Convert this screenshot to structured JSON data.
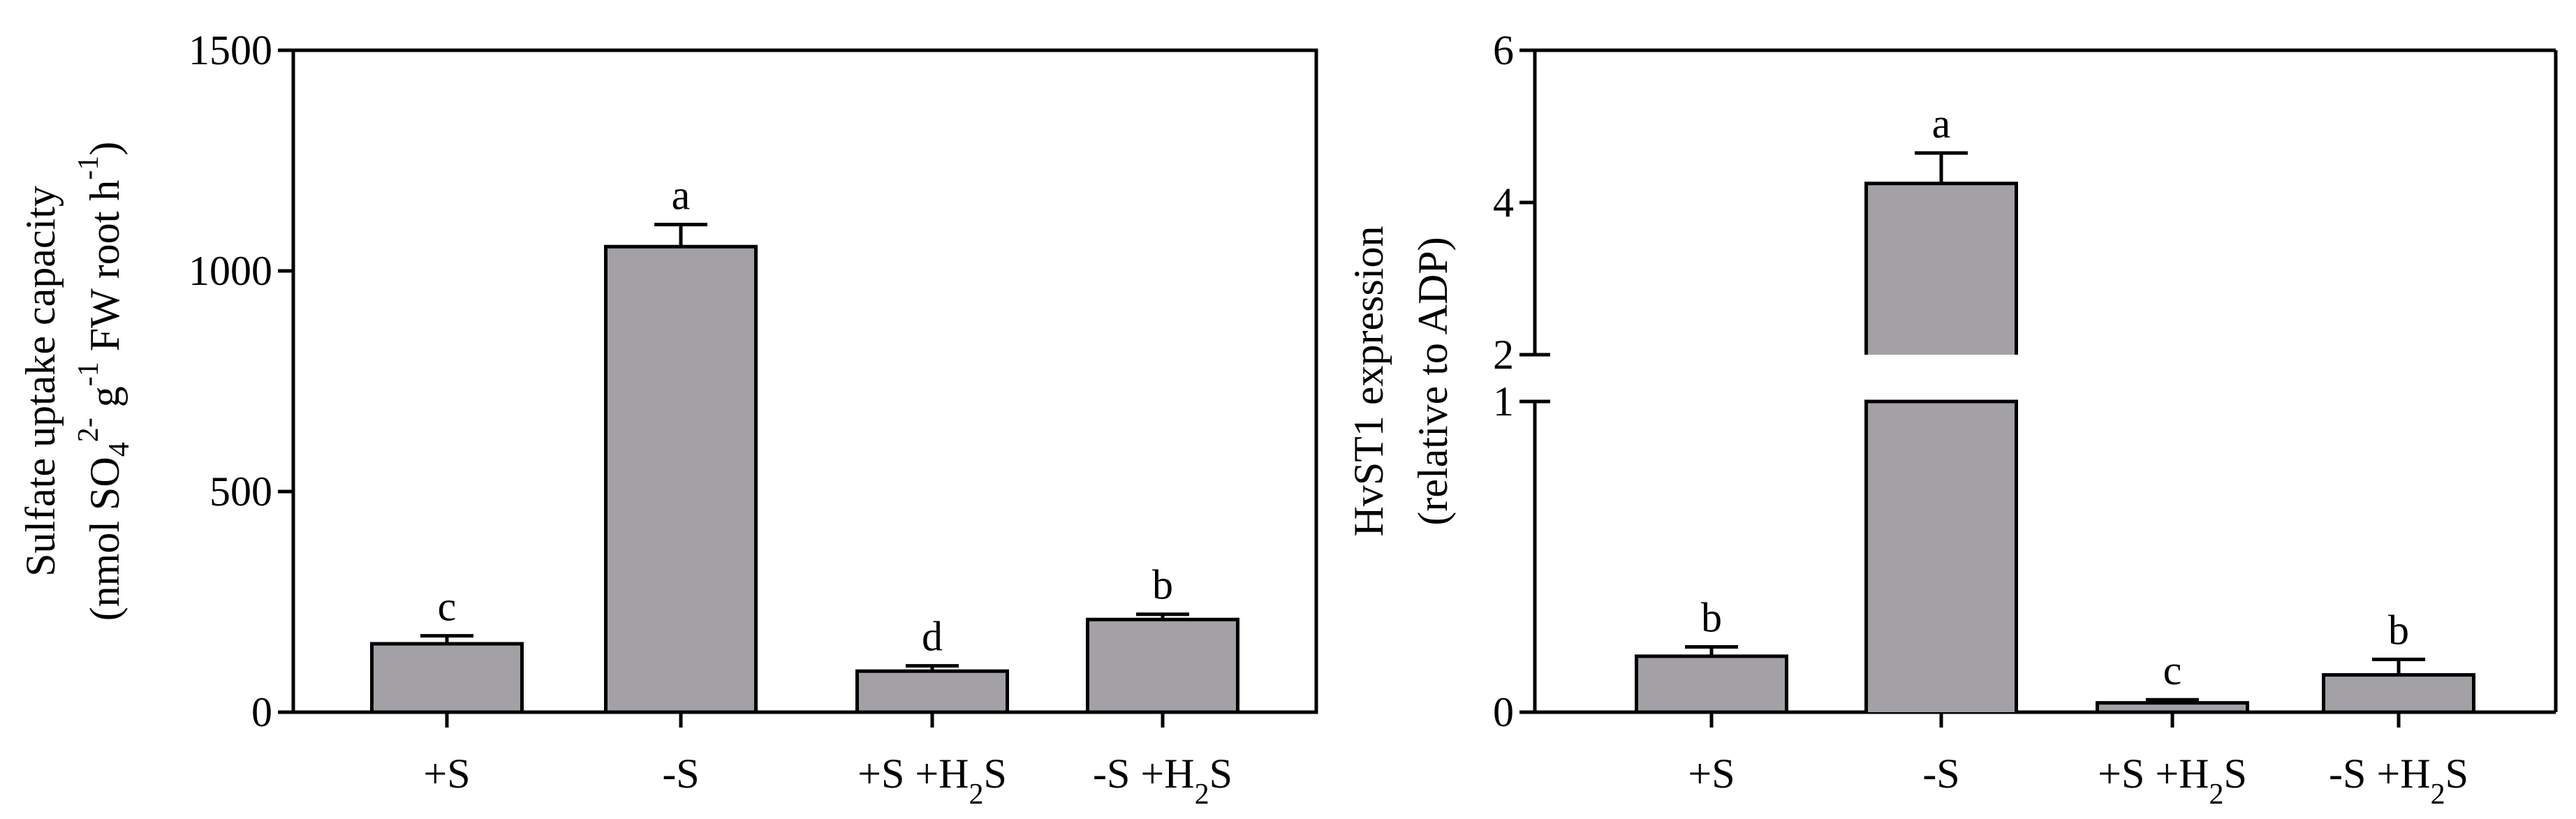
{
  "chart_data": [
    {
      "type": "bar",
      "categories": [
        [
          "+S"
        ],
        [
          "-S"
        ],
        [
          "+S +H",
          "2",
          "S"
        ],
        [
          "-S +H",
          "2",
          "S"
        ]
      ],
      "values": [
        155,
        1055,
        93,
        210
      ],
      "errors": [
        18,
        50,
        12,
        12
      ],
      "significance": [
        "c",
        "a",
        "d",
        "b"
      ],
      "ylabel_line1": "Sulfate uptake capacity",
      "ylabel_line2": [
        "(nmol SO",
        "4",
        "2-",
        " g",
        "-1",
        "  FW root h",
        "-1",
        ")"
      ],
      "ylim": [
        0,
        1500
      ],
      "yticks": [
        "0",
        "500",
        "1000",
        "1500"
      ],
      "bar_color": "#a3a1a6"
    },
    {
      "type": "bar",
      "categories": [
        [
          "+S"
        ],
        [
          "-S"
        ],
        [
          "+S +H",
          "2",
          "S"
        ],
        [
          "-S +H",
          "2",
          "S"
        ]
      ],
      "values": [
        0.18,
        4.25,
        0.03,
        0.12
      ],
      "errors": [
        0.03,
        0.4,
        0.01,
        0.05
      ],
      "significance": [
        "b",
        "a",
        "c",
        "b"
      ],
      "ylabel_line1": "HvST1 expression",
      "ylabel_line2": [
        "(relative to ADP)"
      ],
      "y_axis_break": {
        "lower_range": [
          0,
          1
        ],
        "upper_range": [
          2,
          6
        ]
      },
      "yticks": [
        "0",
        "1",
        "2",
        "4",
        "6"
      ],
      "bar_color": "#a3a1a6"
    }
  ]
}
